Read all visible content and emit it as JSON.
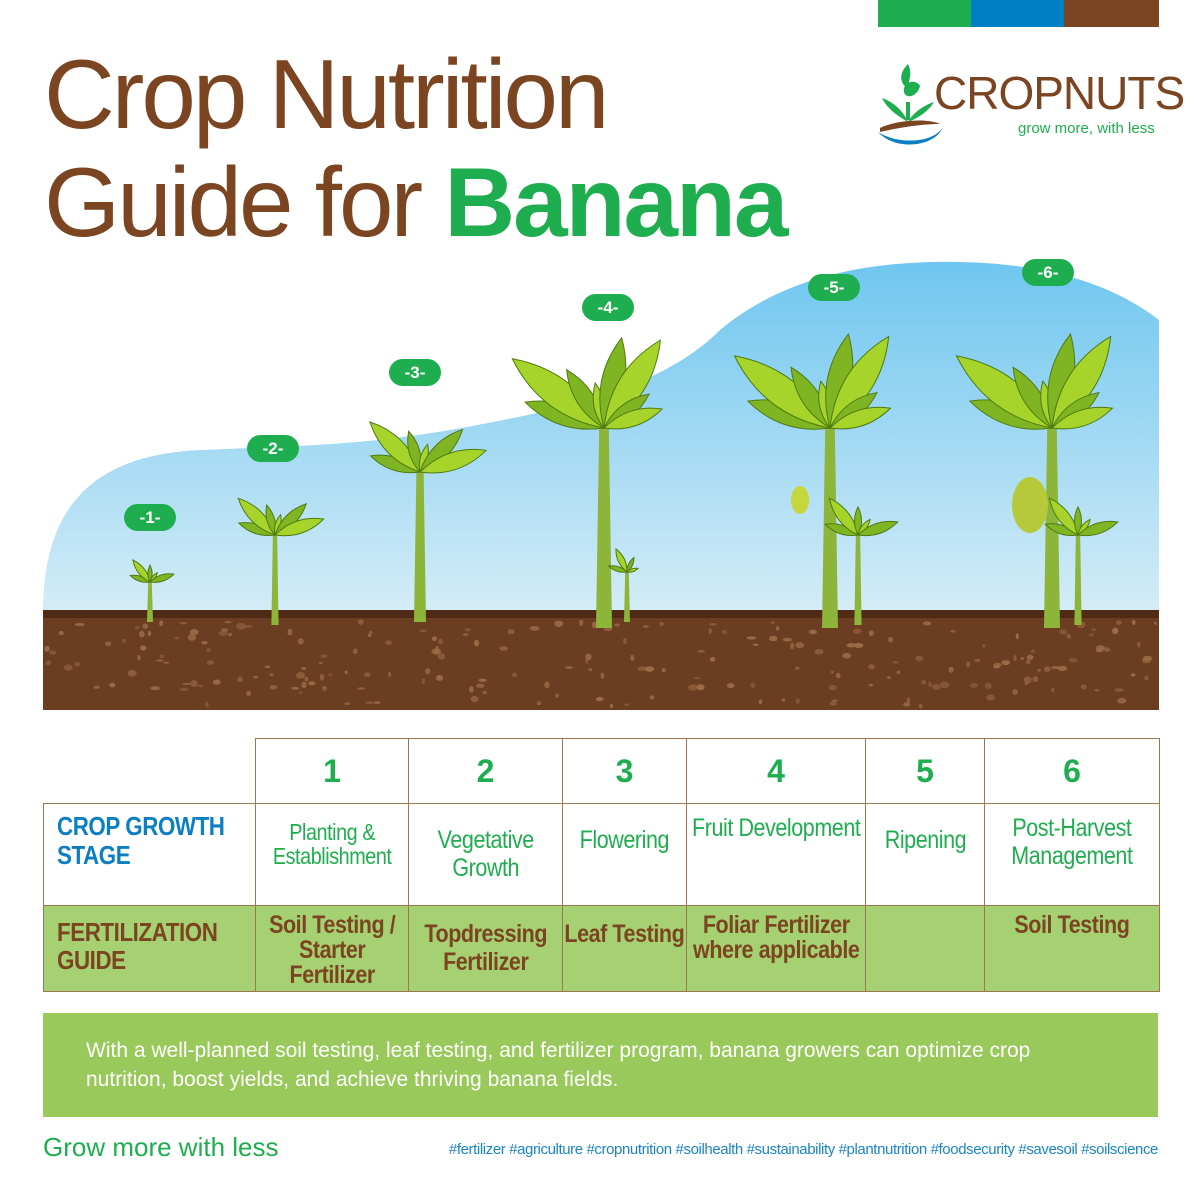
{
  "colors": {
    "green": "#1fae4f",
    "blue": "#0b7fc2",
    "brown": "#7a4520",
    "light_green": "#a6d173"
  },
  "title": {
    "line1": "Crop Nutrition",
    "line2_prefix": "Guide for ",
    "line2_highlight": "Banana"
  },
  "logo": {
    "name": "CROPNUTS",
    "tagline": "grow more, with less"
  },
  "badges": [
    "-1-",
    "-2-",
    "-3-",
    "-4-",
    "-5-",
    "-6-"
  ],
  "table": {
    "numbers": [
      "1",
      "2",
      "3",
      "4",
      "5",
      "6"
    ],
    "stage_label": "CROP GROWTH STAGE",
    "stages": [
      "Planting & Establishment",
      "Vegetative Growth",
      "Flowering",
      "Fruit Development",
      "Ripening",
      "Post-Harvest Management"
    ],
    "fert_label": "FERTILIZATION GUIDE",
    "fertilization": [
      "Soil Testing / Starter Fertilizer",
      "Topdressing Fertilizer",
      "Leaf Testing",
      "Foliar Fertilizer where applicable",
      "",
      "Soil Testing"
    ]
  },
  "summary": "With a well-planned soil testing, leaf testing, and fertilizer program, banana growers can optimize crop nutrition, boost yields, and achieve thriving banana fields.",
  "slogan": "Grow more with less",
  "hashtags": "#fertilizer #agriculture #cropnutrition #soilhealth #sustainability #plantnutrition #foodsecurity #savesoil #soilscience"
}
